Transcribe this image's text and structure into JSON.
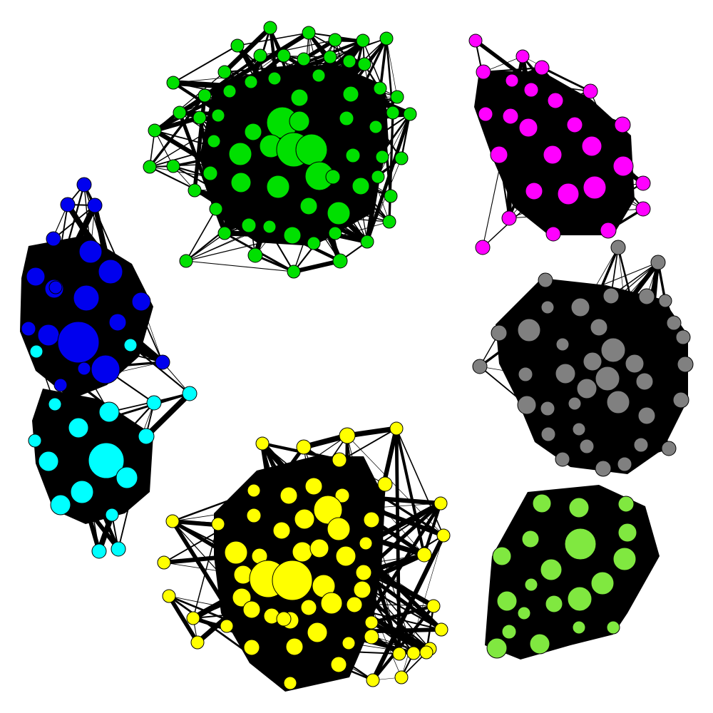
{
  "graph": {
    "type": "network",
    "node_stroke": "#000000",
    "edge_color": "#000000",
    "communities": [
      {
        "id": "green",
        "color": "#00e000",
        "node_count": 70
      },
      {
        "id": "magenta",
        "color": "#ff00ff",
        "node_count": 26
      },
      {
        "id": "blue",
        "color": "#0000ee",
        "node_count": 20
      },
      {
        "id": "cyan",
        "color": "#00ffff",
        "node_count": 17
      },
      {
        "id": "yellow",
        "color": "#ffff00",
        "node_count": 62
      },
      {
        "id": "gray",
        "color": "#808080",
        "node_count": 38
      },
      {
        "id": "lightgreen",
        "color": "#80e840",
        "node_count": 20
      }
    ]
  }
}
